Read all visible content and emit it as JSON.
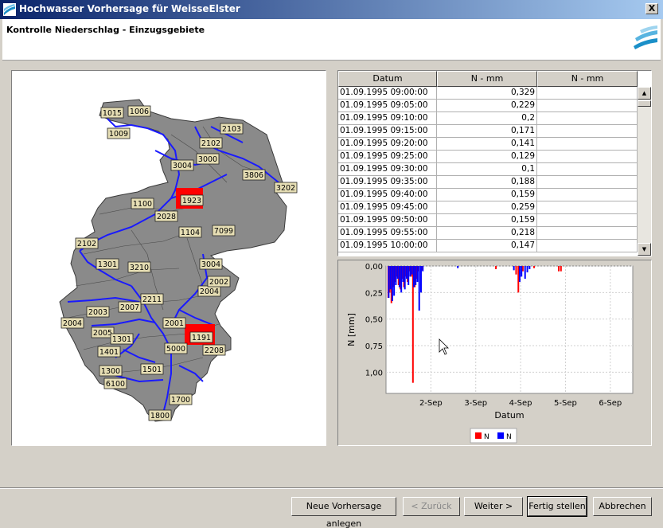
{
  "window": {
    "title": "Hochwasser Vorhersage für WeisseElster",
    "close_label": "X"
  },
  "header": {
    "heading": "Kontrolle Niederschlag - Einzugsgebiete"
  },
  "map": {
    "labels": [
      "1015",
      "1006",
      "1009",
      "2103",
      "2102",
      "3000",
      "3004",
      "1923",
      "1100",
      "2028",
      "7099",
      "3806",
      "2102",
      "1301",
      "3210",
      "3004",
      "2007",
      "2003",
      "2211",
      "2004",
      "2005",
      "2001",
      "2004",
      "2002",
      "1301",
      "5000",
      "2208",
      "1401",
      "1501",
      "1300",
      "6100",
      "1700",
      "1800",
      "1191",
      "3202",
      "1104"
    ]
  },
  "table": {
    "headers": [
      "Datum",
      "N - mm",
      "N - mm"
    ],
    "rows": [
      [
        "01.09.1995 09:00:00",
        "0,329",
        ""
      ],
      [
        "01.09.1995 09:05:00",
        "0,229",
        ""
      ],
      [
        "01.09.1995 09:10:00",
        "0,2",
        ""
      ],
      [
        "01.09.1995 09:15:00",
        "0,171",
        ""
      ],
      [
        "01.09.1995 09:20:00",
        "0,141",
        ""
      ],
      [
        "01.09.1995 09:25:00",
        "0,129",
        ""
      ],
      [
        "01.09.1995 09:30:00",
        "0,1",
        ""
      ],
      [
        "01.09.1995 09:35:00",
        "0,188",
        ""
      ],
      [
        "01.09.1995 09:40:00",
        "0,159",
        ""
      ],
      [
        "01.09.1995 09:45:00",
        "0,259",
        ""
      ],
      [
        "01.09.1995 09:50:00",
        "0,159",
        ""
      ],
      [
        "01.09.1995 09:55:00",
        "0,218",
        ""
      ],
      [
        "01.09.1995 10:00:00",
        "0,147",
        ""
      ]
    ]
  },
  "chart_data": {
    "type": "bar",
    "xlabel": "Datum",
    "ylabel": "N [mm]",
    "ylim": [
      0,
      1.2
    ],
    "y_inverted": true,
    "yticks": [
      "0,00",
      "0,25",
      "0,50",
      "0,75",
      "1,00"
    ],
    "xticks": [
      "2-Sep",
      "3-Sep",
      "4-Sep",
      "5-Sep",
      "6-Sep"
    ],
    "xlim": [
      1.0,
      6.5
    ],
    "legend": {
      "placement": "bottom",
      "entries": [
        "N",
        "N"
      ]
    },
    "series": [
      {
        "name": "N",
        "color": "#ff0000",
        "x": [
          1.05,
          1.08,
          1.12,
          1.16,
          1.2,
          1.24,
          1.28,
          1.32,
          1.36,
          1.4,
          1.44,
          1.48,
          1.52,
          1.56,
          1.6,
          1.64,
          1.68,
          1.72,
          1.8,
          3.45,
          3.9,
          3.95,
          4.05,
          4.3,
          4.85,
          4.9
        ],
        "values": [
          0.3,
          0.25,
          0.35,
          0.2,
          0.15,
          0.1,
          0.18,
          0.22,
          0.12,
          0.2,
          0.1,
          0.15,
          0.05,
          0.1,
          1.1,
          0.2,
          0.12,
          0.05,
          0.04,
          0.03,
          0.08,
          0.25,
          0.05,
          0.02,
          0.05,
          0.05
        ]
      },
      {
        "name": "N",
        "color": "#0000ff",
        "x": [
          1.06,
          1.1,
          1.14,
          1.18,
          1.22,
          1.26,
          1.3,
          1.34,
          1.38,
          1.42,
          1.46,
          1.5,
          1.54,
          1.58,
          1.62,
          1.66,
          1.7,
          1.74,
          1.78,
          1.82,
          2.6,
          3.85,
          3.98,
          4.02,
          4.1,
          4.15,
          4.2
        ],
        "values": [
          0.3,
          0.22,
          0.33,
          0.28,
          0.18,
          0.12,
          0.2,
          0.25,
          0.15,
          0.22,
          0.12,
          0.18,
          0.1,
          0.08,
          0.2,
          0.18,
          0.15,
          0.42,
          0.25,
          0.05,
          0.02,
          0.04,
          0.15,
          0.1,
          0.12,
          0.06,
          0.03
        ]
      }
    ]
  },
  "buttons": {
    "new_forecast": "Neue Vorhersage anlegen",
    "back": "< Zurück",
    "next": "Weiter >",
    "finish": "Fertig stellen",
    "cancel": "Abbrechen"
  }
}
